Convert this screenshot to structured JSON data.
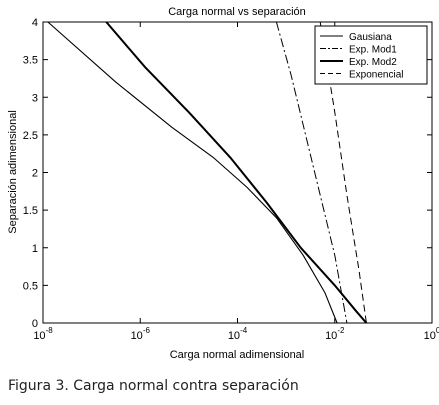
{
  "caption": "Figura 3. Carga normal contra separación",
  "chart_data": {
    "type": "line",
    "title": "Carga normal vs separación",
    "xlabel": "Carga normal adimensional",
    "ylabel": "Separación adimensional",
    "xscale": "log",
    "xlim": [
      1e-08,
      1
    ],
    "ylim": [
      0,
      4
    ],
    "grid": false,
    "legend_position": "top-right",
    "x_ticks": [
      {
        "value": 1e-08,
        "base": "10",
        "exp": "-8"
      },
      {
        "value": 1e-06,
        "base": "10",
        "exp": "-6"
      },
      {
        "value": 0.0001,
        "base": "10",
        "exp": "-4"
      },
      {
        "value": 0.01,
        "base": "10",
        "exp": "-2"
      },
      {
        "value": 1,
        "base": "10",
        "exp": "0"
      }
    ],
    "y_ticks": [
      {
        "value": 0,
        "label": "0"
      },
      {
        "value": 0.5,
        "label": "0.5"
      },
      {
        "value": 1,
        "label": "1"
      },
      {
        "value": 1.5,
        "label": "1.5"
      },
      {
        "value": 2,
        "label": "2"
      },
      {
        "value": 2.5,
        "label": "2.5"
      },
      {
        "value": 3,
        "label": "3"
      },
      {
        "value": 3.5,
        "label": "3.5"
      },
      {
        "value": 4,
        "label": "4"
      }
    ],
    "series": [
      {
        "name": "Gausiana",
        "dash": "solid",
        "width": 1.1,
        "x": [
          1.26e-08,
          3.16e-07,
          4.47e-06,
          3.16e-05,
          0.000158,
          0.000631,
          0.00224,
          0.00631,
          0.0112
        ],
        "y": [
          4.0,
          3.2,
          2.6,
          2.2,
          1.8,
          1.4,
          0.9,
          0.4,
          0.0
        ]
      },
      {
        "name": "Exp. Mod1",
        "dash": "dashdot",
        "width": 1.0,
        "x": [
          0.000631,
          0.00126,
          0.00251,
          0.00501,
          0.01,
          0.0178
        ],
        "y": [
          4.0,
          3.3,
          2.5,
          1.7,
          0.9,
          0.0
        ]
      },
      {
        "name": "Exp. Mod2",
        "dash": "solid",
        "width": 2.0,
        "x": [
          2e-07,
          1.26e-06,
          1e-05,
          7.08e-05,
          0.000398,
          0.002,
          0.01,
          0.0282,
          0.0447
        ],
        "y": [
          4.0,
          3.4,
          2.8,
          2.2,
          1.6,
          1.0,
          0.5,
          0.15,
          0.0
        ]
      },
      {
        "name": "Exponencial",
        "dash": "dashed",
        "width": 1.0,
        "x": [
          0.00501,
          0.01,
          0.0178,
          0.0316,
          0.0447
        ],
        "y": [
          4.0,
          2.8,
          1.7,
          0.7,
          0.0
        ]
      }
    ]
  }
}
